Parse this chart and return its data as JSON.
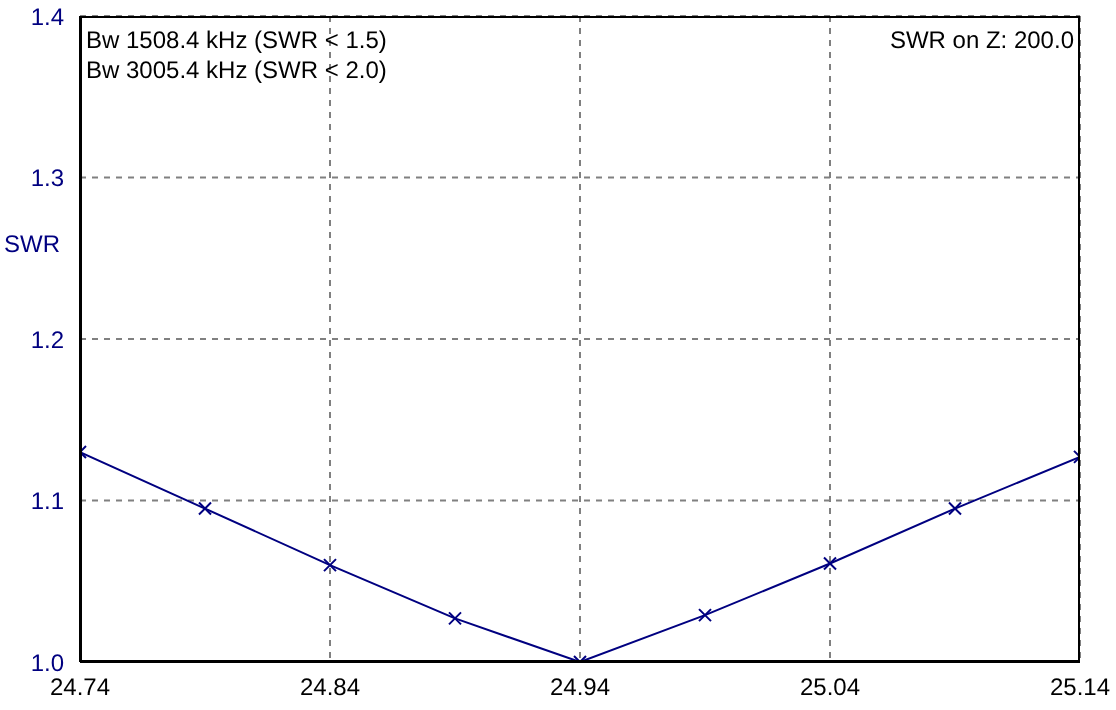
{
  "chart_data": {
    "type": "line",
    "ylabel": "SWR",
    "annotations": [
      "Bw 1508.4 kHz (SWR < 1.5)",
      "Bw 3005.4 kHz (SWR < 2.0)",
      "SWR on Z: 200.0"
    ],
    "x": [
      24.74,
      24.79,
      24.84,
      24.89,
      24.94,
      24.99,
      25.04,
      25.09,
      25.14
    ],
    "series": [
      {
        "color": "#000080",
        "values": [
          1.13,
          1.095,
          1.06,
          1.027,
          1.0,
          1.029,
          1.061,
          1.095,
          1.127
        ]
      }
    ],
    "xlim": [
      24.74,
      25.14
    ],
    "xticks": [
      24.74,
      24.84,
      24.94,
      25.04,
      25.14
    ],
    "ylim": [
      1.0,
      1.4
    ],
    "yticks": [
      {
        "value": 1.0,
        "label": "1.0"
      },
      1.1,
      1.2,
      1.3,
      1.4
    ],
    "grid": true,
    "marker": "cross",
    "line_style": "solid",
    "legend": false
  }
}
